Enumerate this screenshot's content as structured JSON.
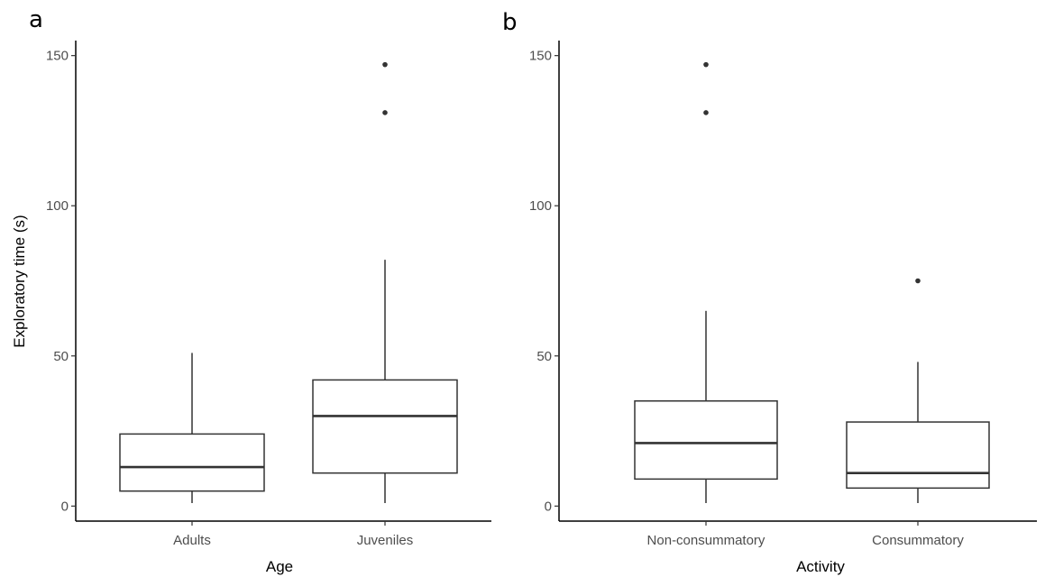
{
  "chart_data": [
    {
      "panel": "a",
      "type": "boxplot",
      "xlabel": "Age",
      "ylabel": "Exploratory time (s)",
      "ylim": [
        -5,
        155
      ],
      "yticks": [
        0,
        50,
        100,
        150
      ],
      "categories": [
        "Adults",
        "Juveniles"
      ],
      "boxes": [
        {
          "category": "Adults",
          "min": 1,
          "q1": 5,
          "median": 13,
          "q3": 24,
          "max": 51,
          "outliers": []
        },
        {
          "category": "Juveniles",
          "min": 1,
          "q1": 11,
          "median": 30,
          "q3": 42,
          "max": 82,
          "outliers": [
            131,
            147
          ]
        }
      ],
      "grid": false
    },
    {
      "panel": "b",
      "type": "boxplot",
      "xlabel": "Activity",
      "ylabel": "",
      "ylim": [
        -5,
        155
      ],
      "yticks": [
        0,
        50,
        100,
        150
      ],
      "categories": [
        "Non-consummatory",
        "Consummatory"
      ],
      "boxes": [
        {
          "category": "Non-consummatory",
          "min": 1,
          "q1": 9,
          "median": 21,
          "q3": 35,
          "max": 65,
          "outliers": [
            131,
            147
          ]
        },
        {
          "category": "Consummatory",
          "min": 1,
          "q1": 6,
          "median": 11,
          "q3": 28,
          "max": 48,
          "outliers": [
            75
          ]
        }
      ],
      "grid": false
    }
  ]
}
